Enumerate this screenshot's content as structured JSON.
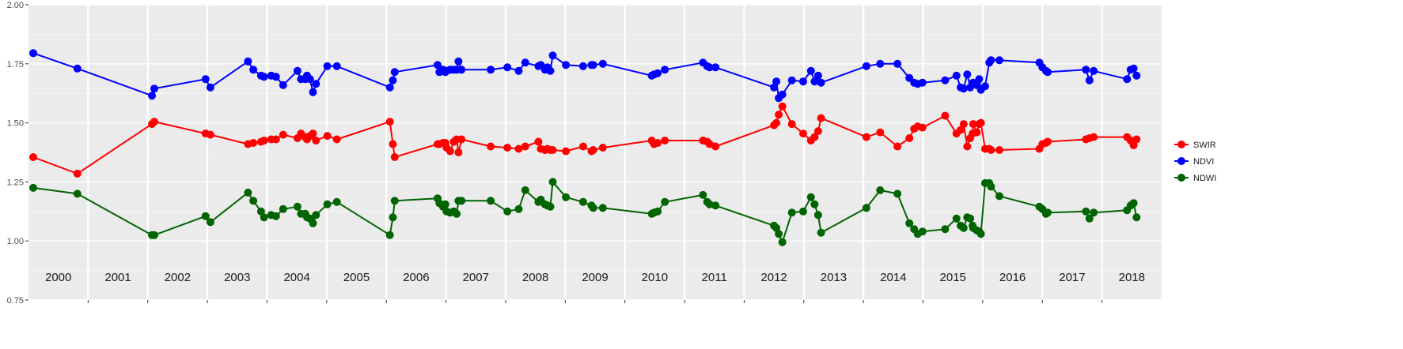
{
  "chart_data": {
    "type": "line",
    "title": "",
    "xlabel": "",
    "ylabel": "",
    "ylim": [
      0.75,
      2.0
    ],
    "y_ticks": [
      "0.75",
      "1.00",
      "1.25",
      "1.50",
      "1.75",
      "2.00"
    ],
    "y_tick_values": [
      0.75,
      1.0,
      1.25,
      1.5,
      1.75,
      2.0
    ],
    "xlim": [
      2000.0,
      2019.0
    ],
    "year_labels": [
      "2000",
      "2001",
      "2002",
      "2003",
      "2004",
      "2005",
      "2006",
      "2007",
      "2008",
      "2009",
      "2010",
      "2011",
      "2012",
      "2013",
      "2014",
      "2015",
      "2016",
      "2017",
      "2018"
    ],
    "grid": true,
    "legend_position": "right",
    "series": [
      {
        "name": "SWIR",
        "color": "#ff0000",
        "x": [
          2000.08,
          2000.82,
          2002.07,
          2002.11,
          2002.97,
          2003.05,
          2003.68,
          2003.77,
          2003.9,
          2003.95,
          2004.07,
          2004.15,
          2004.27,
          2004.51,
          2004.57,
          2004.64,
          2004.67,
          2004.72,
          2004.77,
          2004.82,
          2005.01,
          2005.17,
          2006.06,
          2006.11,
          2006.14,
          2006.86,
          2006.89,
          2006.95,
          2006.99,
          2007.01,
          2007.07,
          2007.13,
          2007.18,
          2007.21,
          2007.26,
          2007.75,
          2008.03,
          2008.22,
          2008.33,
          2008.55,
          2008.59,
          2008.66,
          2008.7,
          2008.75,
          2008.79,
          2009.01,
          2009.3,
          2009.44,
          2009.47,
          2009.63,
          2010.45,
          2010.49,
          2010.55,
          2010.67,
          2011.31,
          2011.38,
          2011.42,
          2011.52,
          2012.5,
          2012.54,
          2012.58,
          2012.64,
          2012.8,
          2012.99,
          2013.12,
          2013.18,
          2013.24,
          2013.29,
          2014.05,
          2014.28,
          2014.57,
          2014.77,
          2014.85,
          2014.91,
          2014.99,
          2015.37,
          2015.56,
          2015.63,
          2015.68,
          2015.74,
          2015.79,
          2015.83,
          2015.84,
          2015.9,
          2015.94,
          2015.97,
          2016.04,
          2016.11,
          2016.14,
          2016.28,
          2016.95,
          2017.0,
          2017.06,
          2017.09,
          2017.73,
          2017.79,
          2017.86,
          2018.42,
          2018.48,
          2018.53,
          2018.58
        ],
        "values": [
          1.355,
          1.285,
          1.495,
          1.505,
          1.455,
          1.45,
          1.41,
          1.415,
          1.42,
          1.425,
          1.43,
          1.43,
          1.45,
          1.435,
          1.455,
          1.44,
          1.43,
          1.445,
          1.455,
          1.425,
          1.445,
          1.43,
          1.505,
          1.41,
          1.355,
          1.41,
          1.41,
          1.415,
          1.415,
          1.395,
          1.38,
          1.42,
          1.43,
          1.375,
          1.43,
          1.4,
          1.395,
          1.39,
          1.4,
          1.42,
          1.39,
          1.385,
          1.39,
          1.385,
          1.385,
          1.38,
          1.4,
          1.38,
          1.385,
          1.395,
          1.425,
          1.41,
          1.415,
          1.425,
          1.425,
          1.42,
          1.41,
          1.4,
          1.49,
          1.5,
          1.535,
          1.57,
          1.495,
          1.455,
          1.425,
          1.44,
          1.465,
          1.52,
          1.44,
          1.46,
          1.4,
          1.435,
          1.475,
          1.485,
          1.48,
          1.53,
          1.455,
          1.47,
          1.495,
          1.4,
          1.435,
          1.455,
          1.495,
          1.46,
          1.495,
          1.5,
          1.39,
          1.39,
          1.385,
          1.385,
          1.39,
          1.41,
          1.415,
          1.42,
          1.43,
          1.435,
          1.44,
          1.44,
          1.425,
          1.405,
          1.43
        ]
      },
      {
        "name": "NDVI",
        "color": "#0000ff",
        "x": [
          2000.08,
          2000.82,
          2002.07,
          2002.11,
          2002.97,
          2003.05,
          2003.68,
          2003.77,
          2003.9,
          2003.95,
          2004.07,
          2004.15,
          2004.27,
          2004.51,
          2004.57,
          2004.64,
          2004.67,
          2004.72,
          2004.77,
          2004.82,
          2005.01,
          2005.17,
          2006.06,
          2006.11,
          2006.14,
          2006.86,
          2006.89,
          2006.95,
          2006.99,
          2007.01,
          2007.07,
          2007.13,
          2007.18,
          2007.21,
          2007.26,
          2007.75,
          2008.03,
          2008.22,
          2008.33,
          2008.55,
          2008.59,
          2008.66,
          2008.7,
          2008.75,
          2008.79,
          2009.01,
          2009.3,
          2009.44,
          2009.47,
          2009.63,
          2010.45,
          2010.49,
          2010.55,
          2010.67,
          2011.31,
          2011.38,
          2011.42,
          2011.52,
          2012.5,
          2012.54,
          2012.58,
          2012.64,
          2012.8,
          2012.99,
          2013.12,
          2013.18,
          2013.24,
          2013.29,
          2014.05,
          2014.28,
          2014.57,
          2014.77,
          2014.85,
          2014.91,
          2014.99,
          2015.37,
          2015.56,
          2015.63,
          2015.68,
          2015.74,
          2015.79,
          2015.83,
          2015.84,
          2015.9,
          2015.94,
          2015.97,
          2016.04,
          2016.11,
          2016.14,
          2016.28,
          2016.95,
          2017.0,
          2017.06,
          2017.09,
          2017.73,
          2017.79,
          2017.86,
          2018.42,
          2018.48,
          2018.53,
          2018.58
        ],
        "values": [
          1.795,
          1.73,
          1.615,
          1.645,
          1.685,
          1.65,
          1.76,
          1.725,
          1.7,
          1.695,
          1.7,
          1.695,
          1.66,
          1.72,
          1.685,
          1.685,
          1.7,
          1.685,
          1.63,
          1.665,
          1.74,
          1.74,
          1.65,
          1.68,
          1.715,
          1.745,
          1.715,
          1.725,
          1.715,
          1.72,
          1.725,
          1.725,
          1.725,
          1.76,
          1.725,
          1.725,
          1.735,
          1.72,
          1.755,
          1.74,
          1.745,
          1.725,
          1.735,
          1.72,
          1.785,
          1.745,
          1.74,
          1.745,
          1.745,
          1.75,
          1.7,
          1.705,
          1.71,
          1.725,
          1.755,
          1.74,
          1.735,
          1.735,
          1.65,
          1.675,
          1.605,
          1.62,
          1.68,
          1.675,
          1.72,
          1.675,
          1.7,
          1.67,
          1.74,
          1.75,
          1.75,
          1.69,
          1.67,
          1.665,
          1.67,
          1.68,
          1.7,
          1.65,
          1.645,
          1.705,
          1.65,
          1.665,
          1.67,
          1.66,
          1.685,
          1.64,
          1.655,
          1.755,
          1.765,
          1.765,
          1.755,
          1.735,
          1.72,
          1.715,
          1.725,
          1.68,
          1.72,
          1.685,
          1.725,
          1.73,
          1.7
        ]
      },
      {
        "name": "NDWI",
        "color": "#006400",
        "x": [
          2000.08,
          2000.82,
          2002.07,
          2002.11,
          2002.97,
          2003.05,
          2003.68,
          2003.77,
          2003.9,
          2003.95,
          2004.07,
          2004.15,
          2004.27,
          2004.51,
          2004.57,
          2004.64,
          2004.67,
          2004.72,
          2004.77,
          2004.82,
          2005.01,
          2005.17,
          2006.06,
          2006.11,
          2006.14,
          2006.86,
          2006.89,
          2006.95,
          2006.99,
          2007.01,
          2007.07,
          2007.13,
          2007.18,
          2007.21,
          2007.26,
          2007.75,
          2008.03,
          2008.22,
          2008.33,
          2008.55,
          2008.59,
          2008.66,
          2008.7,
          2008.75,
          2008.79,
          2009.01,
          2009.3,
          2009.44,
          2009.47,
          2009.63,
          2010.45,
          2010.49,
          2010.55,
          2010.67,
          2011.31,
          2011.38,
          2011.42,
          2011.52,
          2012.5,
          2012.54,
          2012.58,
          2012.64,
          2012.8,
          2012.99,
          2013.12,
          2013.18,
          2013.24,
          2013.29,
          2014.05,
          2014.28,
          2014.57,
          2014.77,
          2014.85,
          2014.91,
          2014.99,
          2015.37,
          2015.56,
          2015.63,
          2015.68,
          2015.74,
          2015.79,
          2015.83,
          2015.84,
          2015.9,
          2015.94,
          2015.97,
          2016.04,
          2016.11,
          2016.14,
          2016.28,
          2016.95,
          2017.0,
          2017.06,
          2017.09,
          2017.73,
          2017.79,
          2017.86,
          2018.42,
          2018.48,
          2018.53,
          2018.58
        ],
        "values": [
          1.225,
          1.2,
          1.025,
          1.025,
          1.105,
          1.08,
          1.205,
          1.17,
          1.125,
          1.1,
          1.11,
          1.105,
          1.135,
          1.145,
          1.115,
          1.115,
          1.1,
          1.095,
          1.075,
          1.11,
          1.155,
          1.165,
          1.025,
          1.1,
          1.17,
          1.18,
          1.16,
          1.145,
          1.155,
          1.125,
          1.12,
          1.125,
          1.115,
          1.17,
          1.17,
          1.17,
          1.125,
          1.135,
          1.215,
          1.165,
          1.175,
          1.155,
          1.15,
          1.145,
          1.25,
          1.185,
          1.165,
          1.15,
          1.14,
          1.14,
          1.115,
          1.12,
          1.125,
          1.165,
          1.195,
          1.165,
          1.155,
          1.15,
          1.065,
          1.055,
          1.03,
          0.995,
          1.12,
          1.125,
          1.185,
          1.155,
          1.11,
          1.035,
          1.14,
          1.215,
          1.2,
          1.075,
          1.05,
          1.03,
          1.04,
          1.05,
          1.095,
          1.065,
          1.055,
          1.1,
          1.095,
          1.065,
          1.055,
          1.045,
          1.04,
          1.03,
          1.245,
          1.245,
          1.23,
          1.19,
          1.145,
          1.135,
          1.115,
          1.12,
          1.125,
          1.095,
          1.12,
          1.13,
          1.15,
          1.16,
          1.1
        ]
      }
    ]
  }
}
